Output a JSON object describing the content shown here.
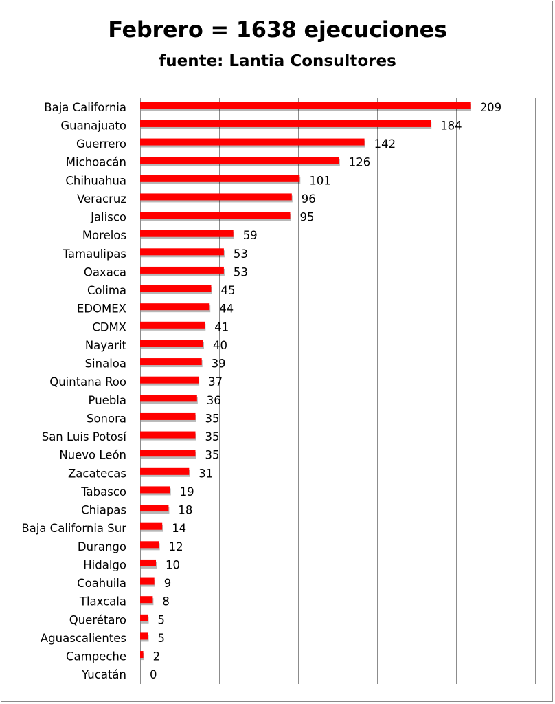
{
  "chart_data": {
    "type": "bar",
    "orientation": "horizontal",
    "title": "Febrero = 1638 ejecuciones",
    "subtitle": "fuente: Lantia Consultores",
    "categories": [
      "Baja California",
      "Guanajuato",
      "Guerrero",
      "Michoacán",
      "Chihuahua",
      "Veracruz",
      "Jalisco",
      "Morelos",
      "Tamaulipas",
      "Oaxaca",
      "Colima",
      "EDOMEX",
      "CDMX",
      "Nayarit",
      "Sinaloa",
      "Quintana Roo",
      "Puebla",
      "Sonora",
      "San Luis Potosí",
      "Nuevo León",
      "Zacatecas",
      "Tabasco",
      "Chiapas",
      "Baja California Sur",
      "Durango",
      "Hidalgo",
      "Coahuila",
      "Tlaxcala",
      "Querétaro",
      "Aguascalientes",
      "Campeche",
      "Yucatán"
    ],
    "values": [
      209,
      184,
      142,
      126,
      101,
      96,
      95,
      59,
      53,
      53,
      45,
      44,
      41,
      40,
      39,
      37,
      36,
      35,
      35,
      35,
      31,
      19,
      18,
      14,
      12,
      10,
      9,
      8,
      5,
      5,
      2,
      0
    ],
    "xlim": [
      0,
      250
    ],
    "grid": true,
    "data_labels": true,
    "bar_color": "#ff0000",
    "grid_color": "#8c8c8c"
  }
}
